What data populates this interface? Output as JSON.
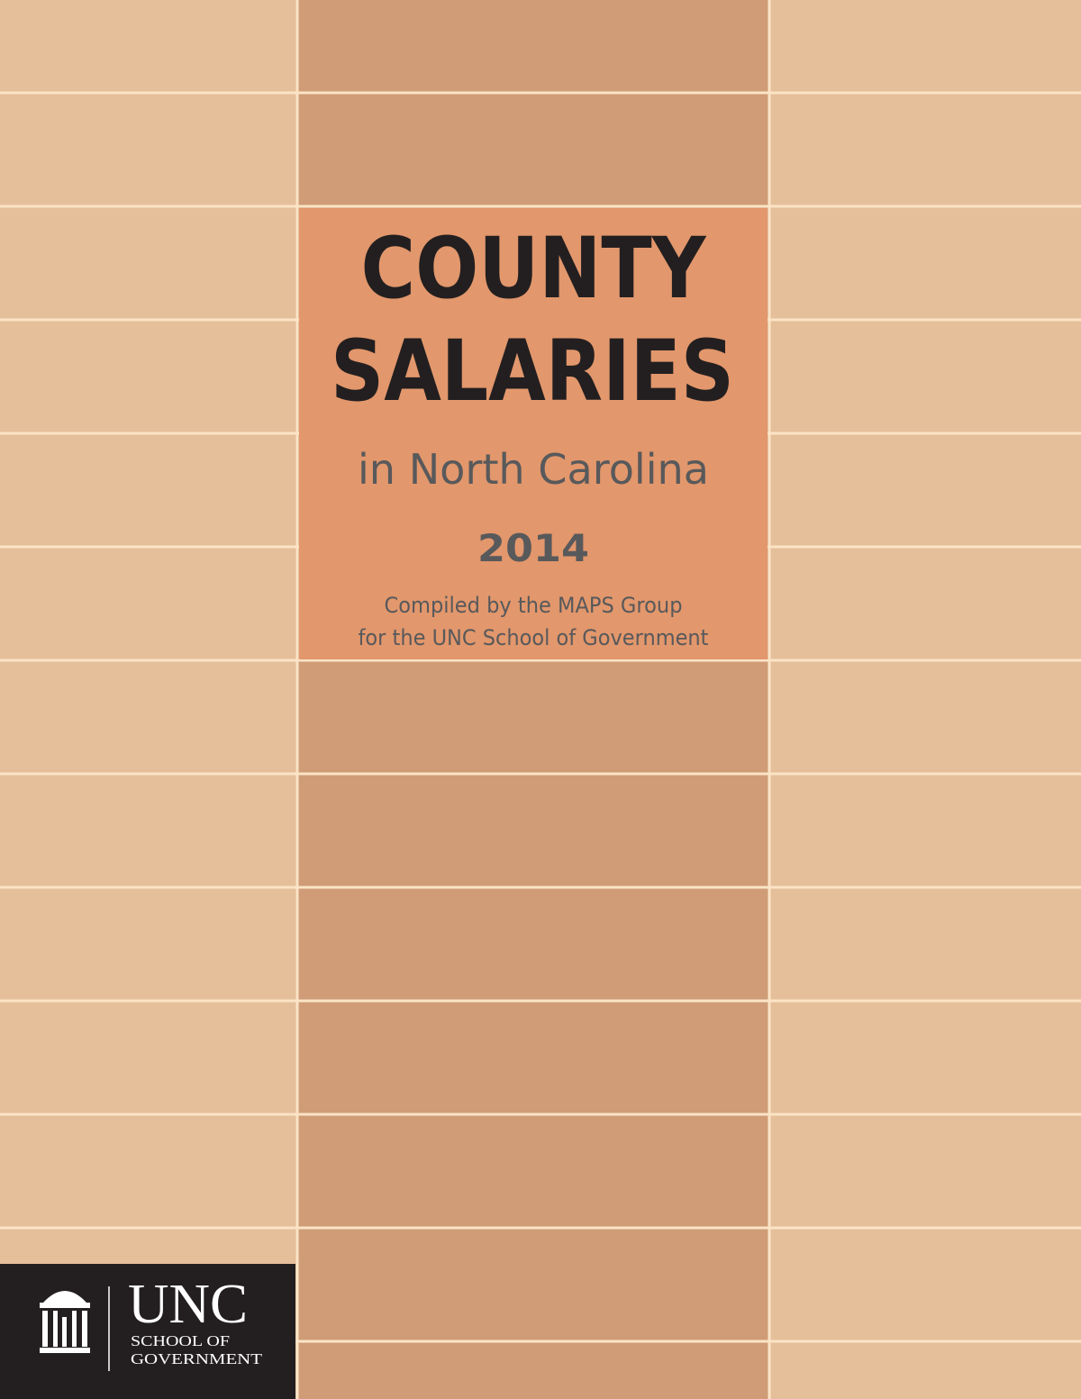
{
  "cover": {
    "title": [
      "COUNTY",
      "SALARIES"
    ],
    "subtitle": "in North Carolina",
    "year": "2014",
    "credit": [
      "Compiled by the MAPS Group",
      "for the UNC School of Government"
    ]
  },
  "logo": {
    "name": "UNC",
    "lines": [
      "SCHOOL OF",
      "GOVERNMENT"
    ]
  }
}
